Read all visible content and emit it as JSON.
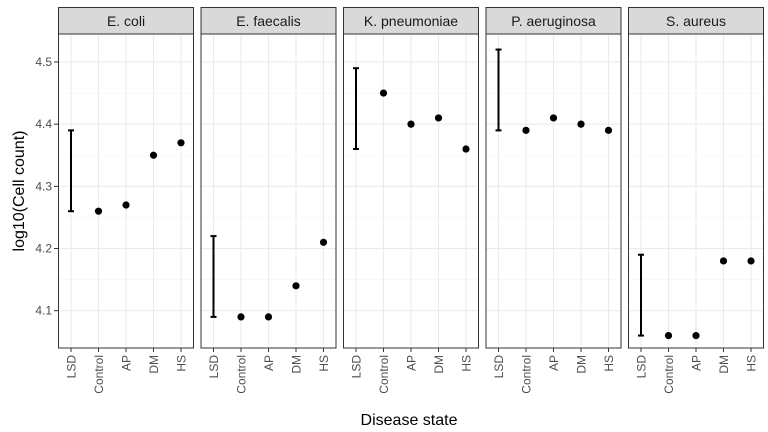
{
  "chart_data": {
    "type": "scatter",
    "xlabel": "Disease state",
    "ylabel": "log10(Cell count)",
    "categories": [
      "LSD",
      "Control",
      "AP",
      "DM",
      "HS"
    ],
    "point_categories": [
      "Control",
      "AP",
      "DM",
      "HS"
    ],
    "ylim": [
      4.04,
      4.545
    ],
    "yticks": [
      4.1,
      4.2,
      4.3,
      4.4,
      4.5
    ],
    "ytick_labels": [
      "4.1",
      "4.2",
      "4.3",
      "4.4",
      "4.5"
    ],
    "grid": true,
    "legend": "none",
    "colors": {
      "points": "#000000",
      "strip_fill": "#d9d9d9",
      "panel_border": "#333333",
      "grid_major": "#ebebeb",
      "grid_minor": "#f5f5f5"
    },
    "panels": [
      {
        "name": "E. coli",
        "values": [
          4.26,
          4.27,
          4.35,
          4.37
        ],
        "lsd": [
          4.26,
          4.39
        ]
      },
      {
        "name": "E. faecalis",
        "values": [
          4.09,
          4.09,
          4.14,
          4.21
        ],
        "lsd": [
          4.09,
          4.22
        ]
      },
      {
        "name": "K. pneumoniae",
        "values": [
          4.45,
          4.4,
          4.41,
          4.36
        ],
        "lsd": [
          4.36,
          4.49
        ]
      },
      {
        "name": "P. aeruginosa",
        "values": [
          4.39,
          4.41,
          4.4,
          4.39
        ],
        "lsd": [
          4.39,
          4.52
        ]
      },
      {
        "name": "S. aureus",
        "values": [
          4.06,
          4.06,
          4.18,
          4.18
        ],
        "lsd": [
          4.06,
          4.19
        ]
      }
    ]
  }
}
